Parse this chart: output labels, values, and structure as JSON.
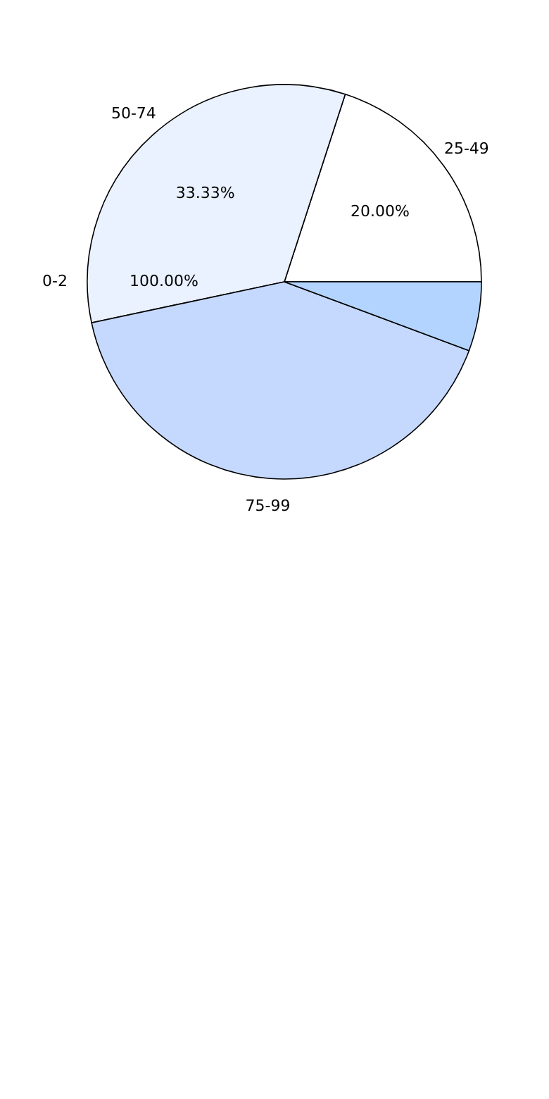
{
  "chart_data": {
    "type": "pie",
    "categories": [
      "25-49",
      "50-74",
      "75-99",
      null
    ],
    "values": [
      20,
      33.33,
      41,
      5.67
    ],
    "colors": [
      "#ffffff",
      "#eaf1ff",
      "#c5d9ff",
      "#b3d4ff"
    ],
    "value_labels": [
      "20.00%",
      "33.33%",
      null,
      null
    ],
    "annotations": [
      "0-2",
      "100.00%"
    ],
    "legend": false
  }
}
